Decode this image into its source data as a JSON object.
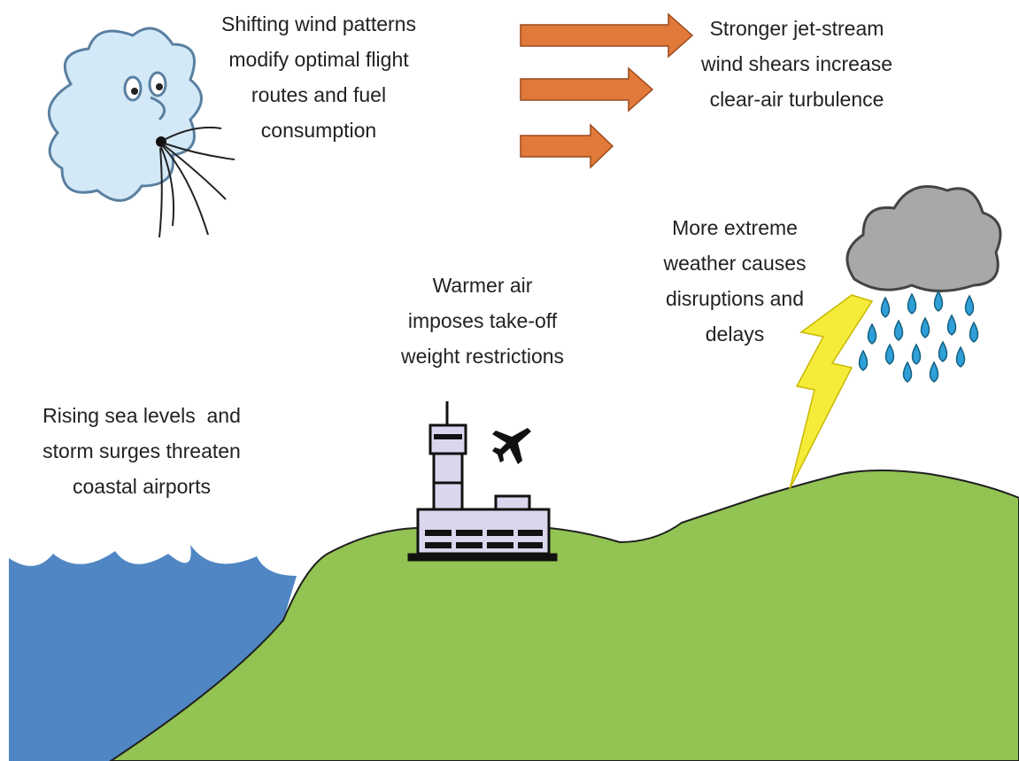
{
  "labels": [
    {
      "lines": [
        "Shifting wind patterns",
        "modify optimal flight",
        "routes and fuel",
        "consumption"
      ]
    },
    {
      "lines": [
        "Stronger jet-stream",
        "wind shears increase",
        "clear-air turbulence"
      ]
    },
    {
      "lines": [
        "More extreme",
        "weather causes",
        "disruptions and",
        "delays"
      ]
    },
    {
      "lines": [
        "Warmer air",
        "imposes take-off",
        "weight restrictions"
      ]
    },
    {
      "lines": [
        "Rising sea levels  and",
        "storm surges threaten",
        "coastal airports"
      ]
    }
  ]
}
